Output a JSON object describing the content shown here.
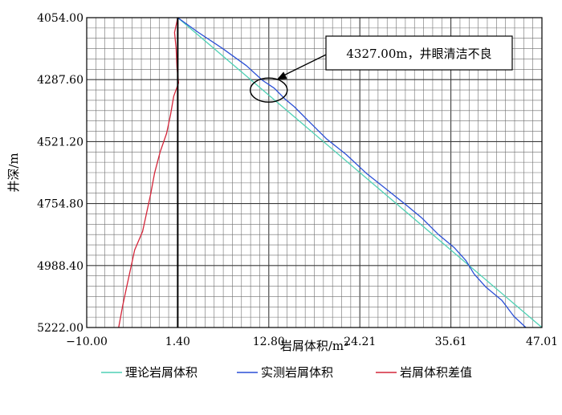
{
  "chart_data": {
    "type": "line",
    "xlabel": "岩屑体积/m³",
    "ylabel": "井深/m",
    "xlim": [
      -10.0,
      47.01
    ],
    "ylim": [
      4054.0,
      5222.0
    ],
    "y_inverted": true,
    "grid": true,
    "x_ticks": [
      "−10.00",
      "1.40",
      "12.80",
      "24.21",
      "35.61",
      "47.01"
    ],
    "x_tick_values": [
      -10.0,
      1.4,
      12.8,
      24.21,
      35.61,
      47.01
    ],
    "y_ticks": [
      "4054.00",
      "4287.60",
      "4521.20",
      "4754.80",
      "4988.40",
      "5222.00"
    ],
    "y_tick_values": [
      4054.0,
      4287.6,
      4521.2,
      4754.8,
      4988.4,
      5222.0
    ],
    "legend_position": "bottom",
    "series": [
      {
        "name": "理论岩屑体积",
        "color": "#4fd1b5",
        "points": [
          [
            1.4,
            4054
          ],
          [
            47.01,
            5222
          ]
        ]
      },
      {
        "name": "实测岩屑体积",
        "color": "#2a4fd6",
        "points": [
          [
            1.4,
            4054
          ],
          [
            4.0,
            4110
          ],
          [
            7.0,
            4170
          ],
          [
            10.0,
            4235
          ],
          [
            12.0,
            4290
          ],
          [
            13.5,
            4320
          ],
          [
            14.8,
            4360
          ],
          [
            16.0,
            4390
          ],
          [
            18.0,
            4450
          ],
          [
            20.0,
            4510
          ],
          [
            22.5,
            4570
          ],
          [
            25.0,
            4640
          ],
          [
            27.5,
            4700
          ],
          [
            30.0,
            4760
          ],
          [
            32.0,
            4810
          ],
          [
            34.0,
            4870
          ],
          [
            36.0,
            4920
          ],
          [
            37.5,
            4970
          ],
          [
            38.5,
            5020
          ],
          [
            40.0,
            5070
          ],
          [
            42.0,
            5120
          ],
          [
            43.5,
            5180
          ],
          [
            45.0,
            5222
          ]
        ]
      },
      {
        "name": "岩屑体积差值",
        "color": "#d4263a",
        "points": [
          [
            1.4,
            4054
          ],
          [
            1.0,
            4110
          ],
          [
            1.2,
            4170
          ],
          [
            1.3,
            4240
          ],
          [
            1.5,
            4300
          ],
          [
            0.9,
            4350
          ],
          [
            0.5,
            4420
          ],
          [
            0.0,
            4490
          ],
          [
            -0.8,
            4560
          ],
          [
            -1.5,
            4640
          ],
          [
            -2.0,
            4720
          ],
          [
            -2.5,
            4790
          ],
          [
            -3.0,
            4860
          ],
          [
            -4.0,
            4930
          ],
          [
            -4.5,
            5000
          ],
          [
            -5.0,
            5070
          ],
          [
            -5.5,
            5140
          ],
          [
            -6.0,
            5222
          ]
        ]
      }
    ],
    "annotation": {
      "text": "4327.00m，井眼清洁不良",
      "x": 12.8,
      "y": 4327.0
    }
  }
}
